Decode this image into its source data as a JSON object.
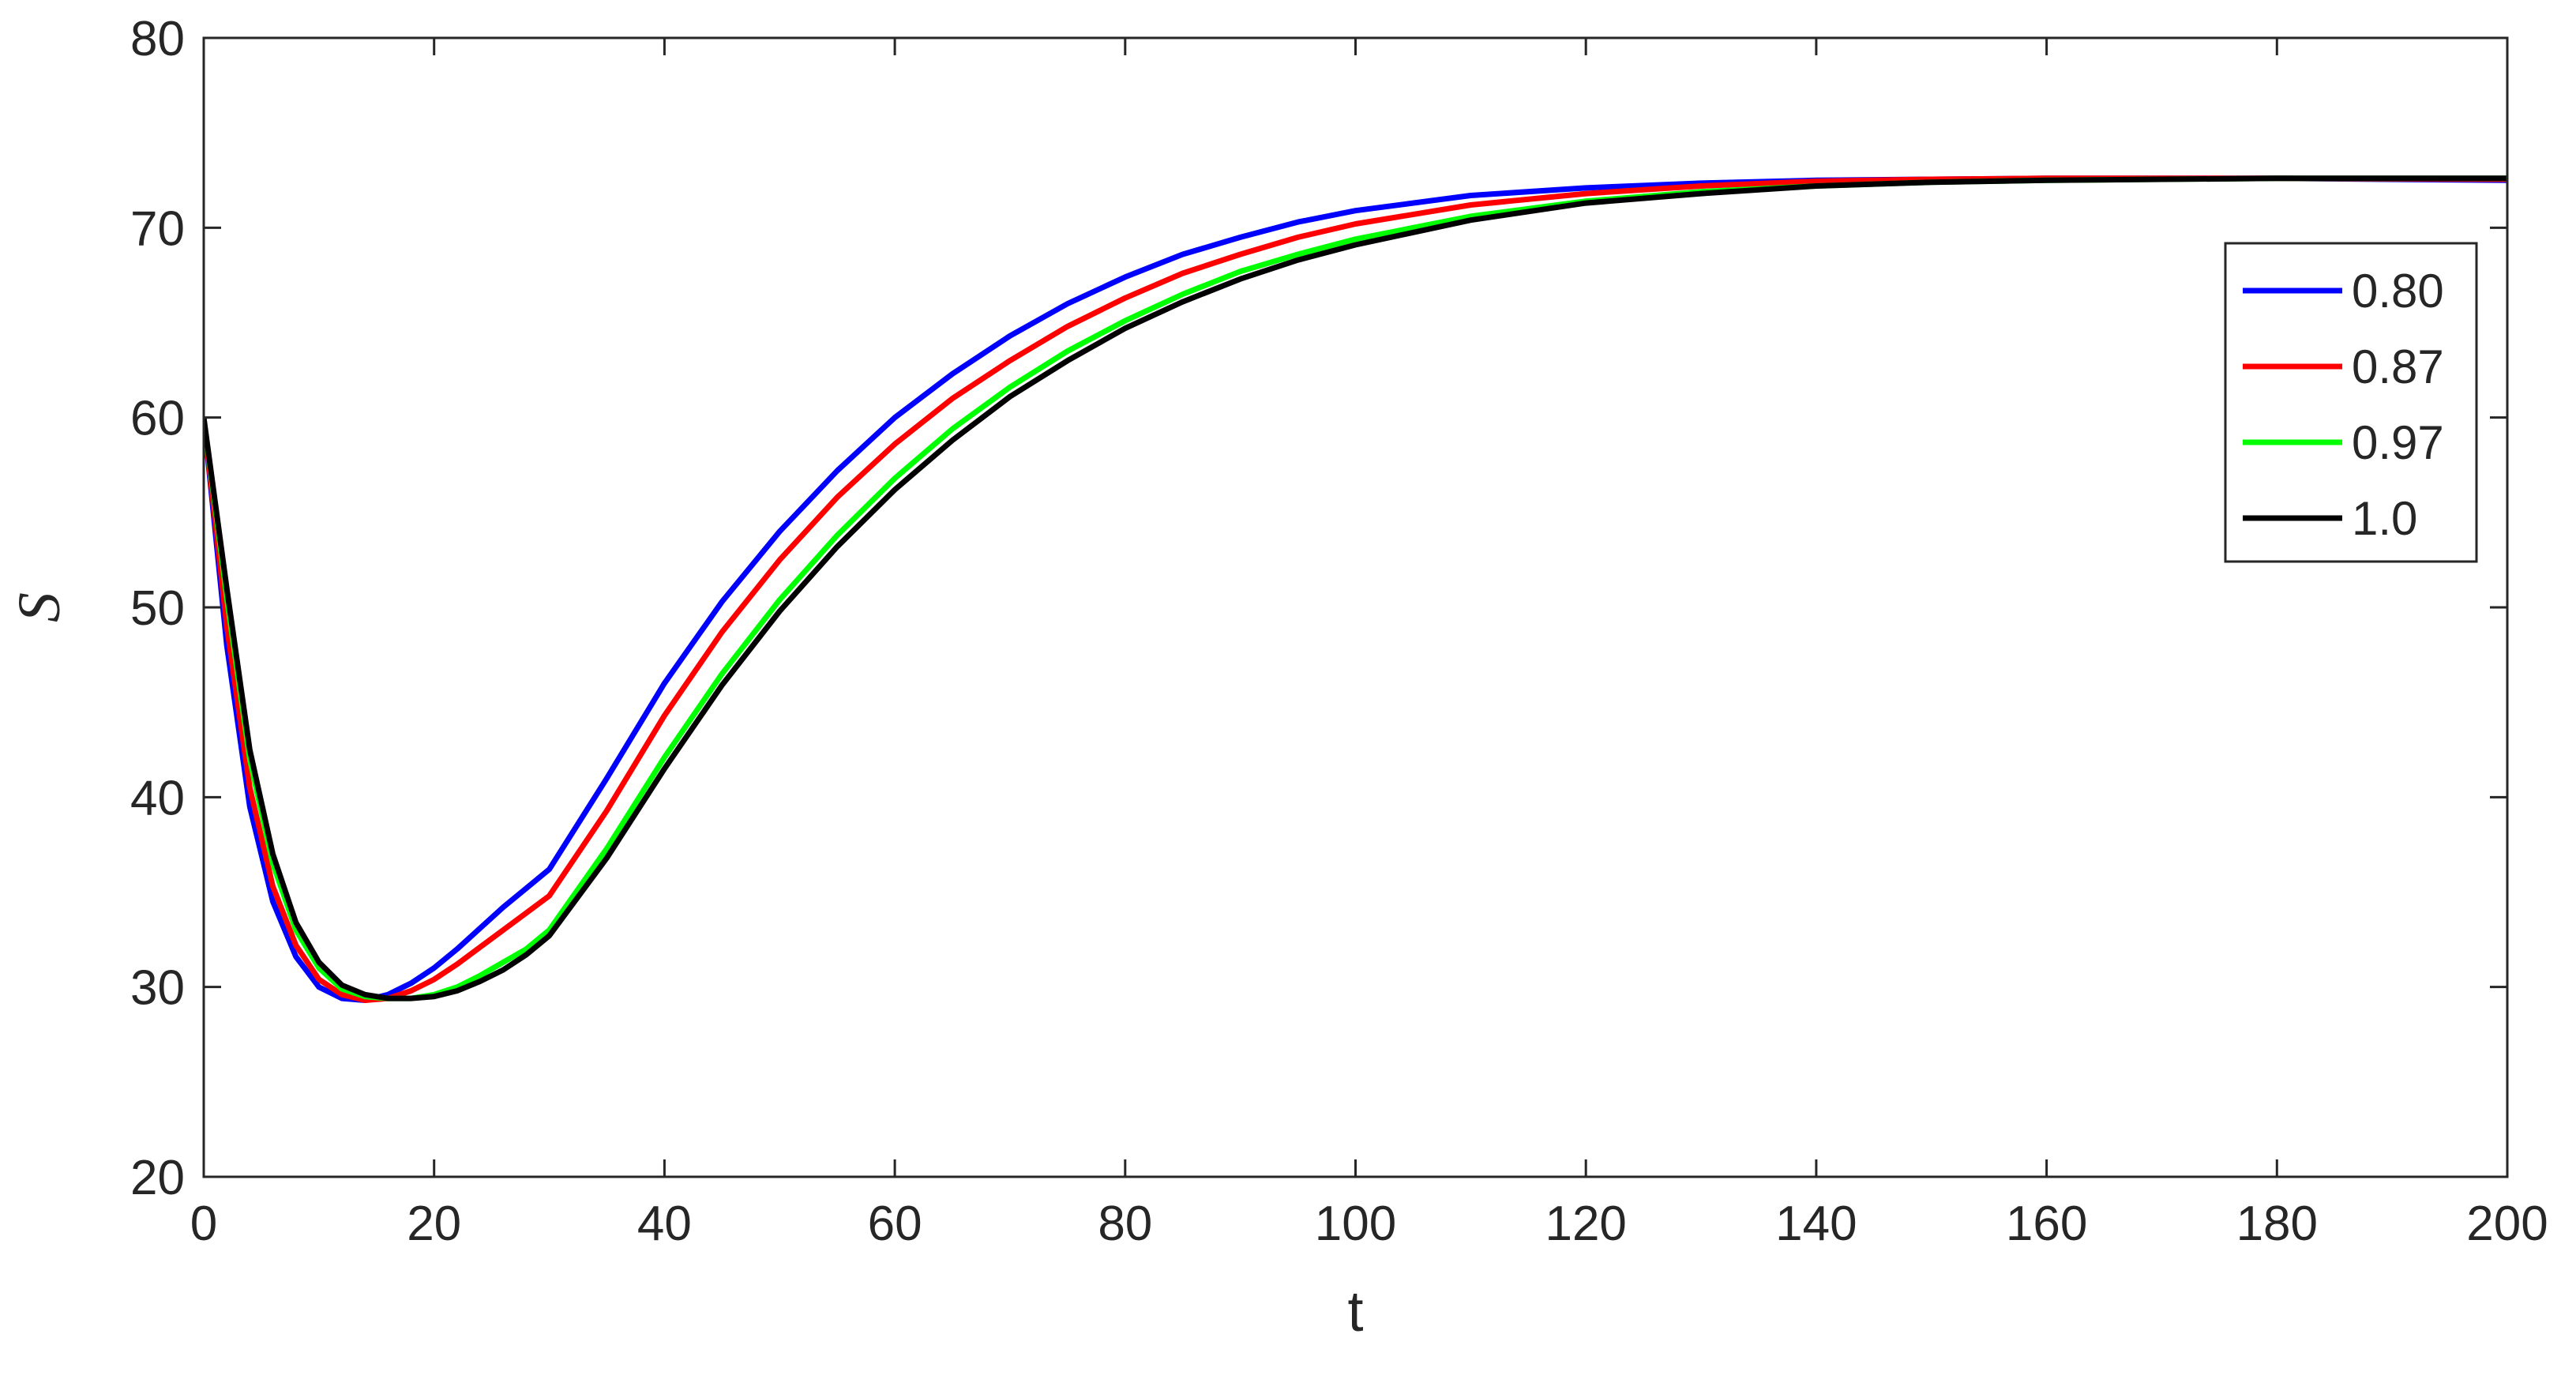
{
  "chart_data": {
    "type": "line",
    "title": "",
    "xlabel": "t",
    "ylabel": "S",
    "xlim": [
      0,
      200
    ],
    "ylim": [
      20,
      80
    ],
    "xticks": [
      "0",
      "20",
      "40",
      "60",
      "80",
      "100",
      "120",
      "140",
      "160",
      "180",
      "200"
    ],
    "yticks": [
      "20",
      "30",
      "40",
      "50",
      "60",
      "70",
      "80"
    ],
    "grid": false,
    "legend_position": "top-right",
    "series": [
      {
        "name": "0.80",
        "color": "#0000ff",
        "points": [
          [
            0,
            60
          ],
          [
            2,
            48
          ],
          [
            4,
            39.5
          ],
          [
            6,
            34.5
          ],
          [
            8,
            31.6
          ],
          [
            10,
            30
          ],
          [
            12,
            29.4
          ],
          [
            14,
            29.3
          ],
          [
            16,
            29.6
          ],
          [
            18,
            30.2
          ],
          [
            20,
            31
          ],
          [
            22,
            32
          ],
          [
            24,
            33.1
          ],
          [
            26,
            34.2
          ],
          [
            28,
            35.2
          ],
          [
            30,
            36.2
          ],
          [
            35,
            41
          ],
          [
            40,
            46
          ],
          [
            45,
            50.3
          ],
          [
            50,
            54
          ],
          [
            55,
            57.2
          ],
          [
            60,
            60
          ],
          [
            65,
            62.3
          ],
          [
            70,
            64.3
          ],
          [
            75,
            66
          ],
          [
            80,
            67.4
          ],
          [
            85,
            68.6
          ],
          [
            90,
            69.5
          ],
          [
            95,
            70.3
          ],
          [
            100,
            70.9
          ],
          [
            110,
            71.7
          ],
          [
            120,
            72.1
          ],
          [
            130,
            72.35
          ],
          [
            140,
            72.5
          ],
          [
            150,
            72.55
          ],
          [
            160,
            72.6
          ],
          [
            180,
            72.6
          ],
          [
            200,
            72.5
          ]
        ]
      },
      {
        "name": "0.87",
        "color": "#ff0000",
        "points": [
          [
            0,
            60
          ],
          [
            2,
            49
          ],
          [
            4,
            40.5
          ],
          [
            6,
            35.3
          ],
          [
            8,
            32.2
          ],
          [
            10,
            30.4
          ],
          [
            12,
            29.6
          ],
          [
            14,
            29.3
          ],
          [
            16,
            29.4
          ],
          [
            18,
            29.8
          ],
          [
            20,
            30.4
          ],
          [
            22,
            31.2
          ],
          [
            24,
            32.1
          ],
          [
            26,
            33
          ],
          [
            28,
            33.9
          ],
          [
            30,
            34.8
          ],
          [
            35,
            39.3
          ],
          [
            40,
            44.3
          ],
          [
            45,
            48.7
          ],
          [
            50,
            52.5
          ],
          [
            55,
            55.8
          ],
          [
            60,
            58.6
          ],
          [
            65,
            61
          ],
          [
            70,
            63
          ],
          [
            75,
            64.8
          ],
          [
            80,
            66.3
          ],
          [
            85,
            67.6
          ],
          [
            90,
            68.6
          ],
          [
            95,
            69.5
          ],
          [
            100,
            70.2
          ],
          [
            110,
            71.2
          ],
          [
            120,
            71.8
          ],
          [
            130,
            72.2
          ],
          [
            140,
            72.45
          ],
          [
            150,
            72.55
          ],
          [
            160,
            72.6
          ],
          [
            180,
            72.6
          ],
          [
            200,
            72.55
          ]
        ]
      },
      {
        "name": "0.97",
        "color": "#00ff00",
        "points": [
          [
            0,
            60
          ],
          [
            2,
            50.5
          ],
          [
            4,
            42
          ],
          [
            6,
            36.5
          ],
          [
            8,
            33
          ],
          [
            10,
            31
          ],
          [
            12,
            29.9
          ],
          [
            14,
            29.5
          ],
          [
            16,
            29.4
          ],
          [
            18,
            29.4
          ],
          [
            20,
            29.6
          ],
          [
            22,
            30
          ],
          [
            24,
            30.6
          ],
          [
            26,
            31.3
          ],
          [
            28,
            32
          ],
          [
            30,
            33
          ],
          [
            35,
            37.3
          ],
          [
            40,
            42.1
          ],
          [
            45,
            46.5
          ],
          [
            50,
            50.4
          ],
          [
            55,
            53.8
          ],
          [
            60,
            56.8
          ],
          [
            65,
            59.4
          ],
          [
            70,
            61.6
          ],
          [
            75,
            63.5
          ],
          [
            80,
            65.1
          ],
          [
            85,
            66.5
          ],
          [
            90,
            67.7
          ],
          [
            95,
            68.6
          ],
          [
            100,
            69.4
          ],
          [
            110,
            70.6
          ],
          [
            120,
            71.4
          ],
          [
            130,
            71.9
          ],
          [
            140,
            72.2
          ],
          [
            150,
            72.4
          ],
          [
            160,
            72.5
          ],
          [
            180,
            72.6
          ],
          [
            200,
            72.6
          ]
        ]
      },
      {
        "name": "1.0",
        "color": "#000000",
        "points": [
          [
            0,
            60
          ],
          [
            2,
            51
          ],
          [
            4,
            42.5
          ],
          [
            6,
            37
          ],
          [
            8,
            33.4
          ],
          [
            10,
            31.3
          ],
          [
            12,
            30.1
          ],
          [
            14,
            29.6
          ],
          [
            16,
            29.4
          ],
          [
            18,
            29.4
          ],
          [
            20,
            29.5
          ],
          [
            22,
            29.8
          ],
          [
            24,
            30.3
          ],
          [
            26,
            30.9
          ],
          [
            28,
            31.7
          ],
          [
            30,
            32.7
          ],
          [
            35,
            36.8
          ],
          [
            40,
            41.5
          ],
          [
            45,
            45.9
          ],
          [
            50,
            49.8
          ],
          [
            55,
            53.2
          ],
          [
            60,
            56.2
          ],
          [
            65,
            58.8
          ],
          [
            70,
            61.1
          ],
          [
            75,
            63
          ],
          [
            80,
            64.7
          ],
          [
            85,
            66.1
          ],
          [
            90,
            67.3
          ],
          [
            95,
            68.3
          ],
          [
            100,
            69.1
          ],
          [
            110,
            70.4
          ],
          [
            120,
            71.3
          ],
          [
            130,
            71.8
          ],
          [
            140,
            72.2
          ],
          [
            150,
            72.4
          ],
          [
            160,
            72.5
          ],
          [
            180,
            72.6
          ],
          [
            200,
            72.6
          ]
        ]
      }
    ]
  }
}
